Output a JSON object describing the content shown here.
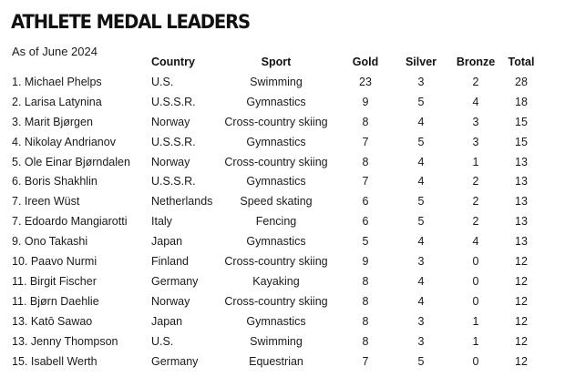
{
  "title": "ATHLETE MEDAL LEADERS",
  "subtitle": "As of June 2024",
  "headers": {
    "athlete": "",
    "country": "Country",
    "sport": "Sport",
    "gold": "Gold",
    "silver": "Silver",
    "bronze": "Bronze",
    "total": "Total"
  },
  "rows": [
    {
      "name": "1. Michael Phelps",
      "country": "U.S.",
      "sport": "Swimming",
      "gold": "23",
      "silver": "3",
      "bronze": "2",
      "total": "28"
    },
    {
      "name": "2. Larisa Latynina",
      "country": "U.S.S.R.",
      "sport": "Gymnastics",
      "gold": "9",
      "silver": "5",
      "bronze": "4",
      "total": "18"
    },
    {
      "name": "3. Marit Bjørgen",
      "country": "Norway",
      "sport": "Cross-country skiing",
      "gold": "8",
      "silver": "4",
      "bronze": "3",
      "total": "15"
    },
    {
      "name": "4. Nikolay Andrianov",
      "country": "U.S.S.R.",
      "sport": "Gymnastics",
      "gold": "7",
      "silver": "5",
      "bronze": "3",
      "total": "15"
    },
    {
      "name": "5. Ole Einar Bjørndalen",
      "country": "Norway",
      "sport": "Cross-country skiing",
      "gold": "8",
      "silver": "4",
      "bronze": "1",
      "total": "13"
    },
    {
      "name": "6. Boris Shakhlin",
      "country": "U.S.S.R.",
      "sport": "Gymnastics",
      "gold": "7",
      "silver": "4",
      "bronze": "2",
      "total": "13"
    },
    {
      "name": "7. Ireen Wüst",
      "country": "Netherlands",
      "sport": "Speed skating",
      "gold": "6",
      "silver": "5",
      "bronze": "2",
      "total": "13"
    },
    {
      "name": "7. Edoardo Mangiarotti",
      "country": "Italy",
      "sport": "Fencing",
      "gold": "6",
      "silver": "5",
      "bronze": "2",
      "total": "13"
    },
    {
      "name": "9. Ono Takashi",
      "country": "Japan",
      "sport": "Gymnastics",
      "gold": "5",
      "silver": "4",
      "bronze": "4",
      "total": "13"
    },
    {
      "name": "10. Paavo Nurmi",
      "country": "Finland",
      "sport": "Cross-country skiing",
      "gold": "9",
      "silver": "3",
      "bronze": "0",
      "total": "12"
    },
    {
      "name": "11. Birgit Fischer",
      "country": "Germany",
      "sport": "Kayaking",
      "gold": "8",
      "silver": "4",
      "bronze": "0",
      "total": "12"
    },
    {
      "name": "11. Bjørn Daehlie",
      "country": "Norway",
      "sport": "Cross-country skiing",
      "gold": "8",
      "silver": "4",
      "bronze": "0",
      "total": "12"
    },
    {
      "name": "13. Katō Sawao",
      "country": "Japan",
      "sport": "Gymnastics",
      "gold": "8",
      "silver": "3",
      "bronze": "1",
      "total": "12"
    },
    {
      "name": "13. Jenny Thompson",
      "country": "U.S.",
      "sport": "Swimming",
      "gold": "8",
      "silver": "3",
      "bronze": "1",
      "total": "12"
    },
    {
      "name": "15. Isabell Werth",
      "country": "Germany",
      "sport": "Equestrian",
      "gold": "7",
      "silver": "5",
      "bronze": "0",
      "total": "12"
    }
  ]
}
